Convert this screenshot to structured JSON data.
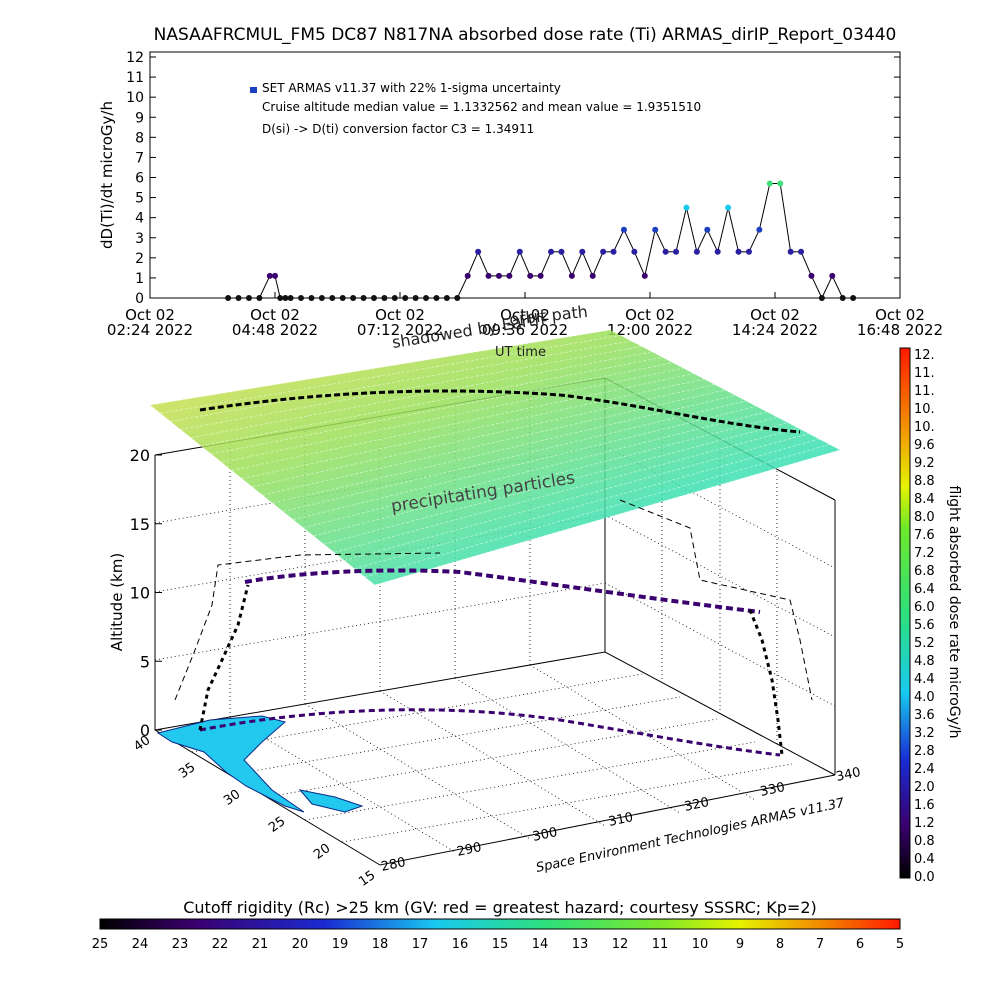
{
  "title": "NASAAFRCMUL_FM5 DC87 N817NA absorbed dose rate (Ti) ARMAS_dirIP_Report_03440",
  "chart_data": [
    {
      "type": "scatter",
      "ylabel": "dD(Ti)/dt microGy/h",
      "xlabel": "UT time",
      "ylim": [
        0,
        12
      ],
      "yticks": [
        "0",
        "1",
        "2",
        "3",
        "4",
        "5",
        "6",
        "7",
        "8",
        "9",
        "10",
        "11",
        "12"
      ],
      "xticks": [
        {
          "line1": "Oct 02",
          "line2": "02:24 2022"
        },
        {
          "line1": "Oct 02",
          "line2": "04:48 2022"
        },
        {
          "line1": "Oct 02",
          "line2": "07:12 2022"
        },
        {
          "line1": "Oct 02",
          "line2": "09:36 2022"
        },
        {
          "line1": "Oct 02",
          "line2": "12:00 2022"
        },
        {
          "line1": "Oct 02",
          "line2": "14:24 2022"
        },
        {
          "line1": "Oct 02",
          "line2": "16:48 2022"
        }
      ],
      "annotations": [
        "SET ARMAS v11.37 with 22% 1-sigma uncertainty",
        "Cruise altitude median value = 1.1332562 and mean value = 1.9351510",
        "D(si) -> D(ti) conversion factor C3 = 1.34911"
      ],
      "legend_color": "#1a3fbf",
      "series": [
        {
          "x_hours": [
            3.9,
            4.1,
            4.3,
            4.5,
            4.7,
            4.8,
            4.9,
            5.0,
            5.1,
            5.3,
            5.5,
            5.7,
            5.9,
            6.1,
            6.3,
            6.5,
            6.7,
            6.9,
            7.1,
            7.3,
            7.5,
            7.7,
            7.9,
            8.1,
            8.3,
            8.5,
            8.7,
            8.9,
            9.1,
            9.3,
            9.5,
            9.7,
            9.9,
            10.1,
            10.3,
            10.5,
            10.7,
            10.9,
            11.1,
            11.3,
            11.5,
            11.7,
            11.9,
            12.1,
            12.3,
            12.5,
            12.7,
            12.9,
            13.1,
            13.3,
            13.5,
            13.7,
            13.9,
            14.1,
            14.3,
            14.5,
            14.7,
            14.9,
            15.1,
            15.3,
            15.5,
            15.7,
            15.9
          ],
          "values": [
            0,
            0,
            0,
            0,
            1.1,
            1.1,
            0,
            0,
            0,
            0,
            0,
            0,
            0,
            0,
            0,
            0,
            0,
            0,
            0,
            0,
            0,
            0,
            0,
            0,
            0,
            1.1,
            2.3,
            1.1,
            1.1,
            1.1,
            2.3,
            1.1,
            1.1,
            2.3,
            2.3,
            1.1,
            2.3,
            1.1,
            2.3,
            2.3,
            3.4,
            2.3,
            1.1,
            3.4,
            2.3,
            2.3,
            4.5,
            2.3,
            3.4,
            2.3,
            4.5,
            2.3,
            2.3,
            3.4,
            5.7,
            5.7,
            2.3,
            2.3,
            1.1,
            0,
            1.1,
            0,
            0
          ]
        }
      ]
    },
    {
      "type": "scatter",
      "dimensions": "3d",
      "zlabel": "Altitude (km)",
      "zticks": [
        "0",
        "5",
        "10",
        "15",
        "20"
      ],
      "lat_ticks": [
        "40",
        "35",
        "30",
        "25",
        "20",
        "15"
      ],
      "lon_ticks": [
        "280",
        "290",
        "300",
        "310",
        "320",
        "330",
        "340"
      ],
      "credit": "Space Environment Technologies ARMAS v11.37",
      "annotations": [
        "precipitating particles",
        "orbit path",
        "shadowed by Earth",
        "UT time"
      ],
      "colorbar": {
        "label": "flight absorbed dose rate microGy/h",
        "ticks": [
          "0.0",
          "0.4",
          "0.8",
          "1.2",
          "1.6",
          "2.0",
          "2.4",
          "2.8",
          "3.2",
          "3.6",
          "4.0",
          "4.4",
          "4.8",
          "5.2",
          "5.6",
          "6.0",
          "6.4",
          "6.8",
          "7.2",
          "7.6",
          "8.0",
          "8.4",
          "8.8",
          "9.2",
          "9.6",
          "10.",
          "10.",
          "11.",
          "11.",
          "12."
        ],
        "min": 0,
        "max": 12
      },
      "cutoff_colorbar": {
        "title": "Cutoff rigidity (Rc) >25 km (GV: red = greatest hazard; courtesy SSSRC; Kp=2)",
        "ticks": [
          "25",
          "24",
          "23",
          "22",
          "21",
          "20",
          "19",
          "18",
          "17",
          "16",
          "15",
          "14",
          "13",
          "12",
          "11",
          "10",
          "9",
          "8",
          "7",
          "6",
          "5"
        ]
      }
    }
  ]
}
